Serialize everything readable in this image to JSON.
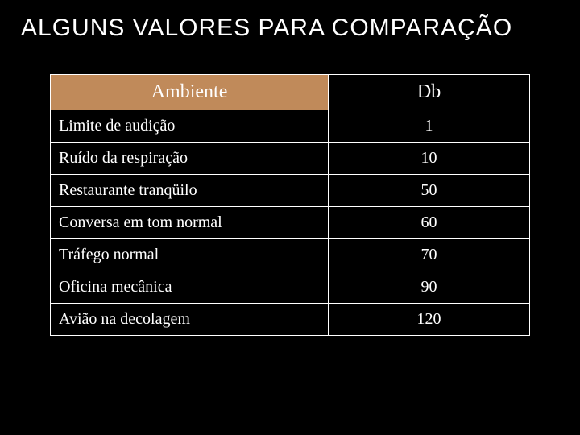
{
  "title": "ALGUNS VALORES PARA COMPARAÇÃO",
  "table": {
    "type": "table",
    "background_color": "#000000",
    "border_color": "#ffffff",
    "text_color": "#ffffff",
    "header_bg_ambiente": "#c08a5a",
    "header_bg_db": "#000000",
    "column_widths": [
      "58%",
      "42%"
    ],
    "header_fontsize": 24,
    "cell_fontsize": 20,
    "columns": [
      "Ambiente",
      "Db"
    ],
    "rows": [
      {
        "ambiente": "Limite de audição",
        "db": "1"
      },
      {
        "ambiente": "Ruído da respiração",
        "db": "10"
      },
      {
        "ambiente": "Restaurante tranqüilo",
        "db": "50"
      },
      {
        "ambiente": "Conversa em tom normal",
        "db": "60"
      },
      {
        "ambiente": "Tráfego normal",
        "db": "70"
      },
      {
        "ambiente": "Oficina mecânica",
        "db": "90"
      },
      {
        "ambiente": "Avião na decolagem",
        "db": "120"
      }
    ]
  },
  "title_style": {
    "color": "#ffffff",
    "fontsize": 30,
    "font_family": "Comic Sans MS"
  }
}
